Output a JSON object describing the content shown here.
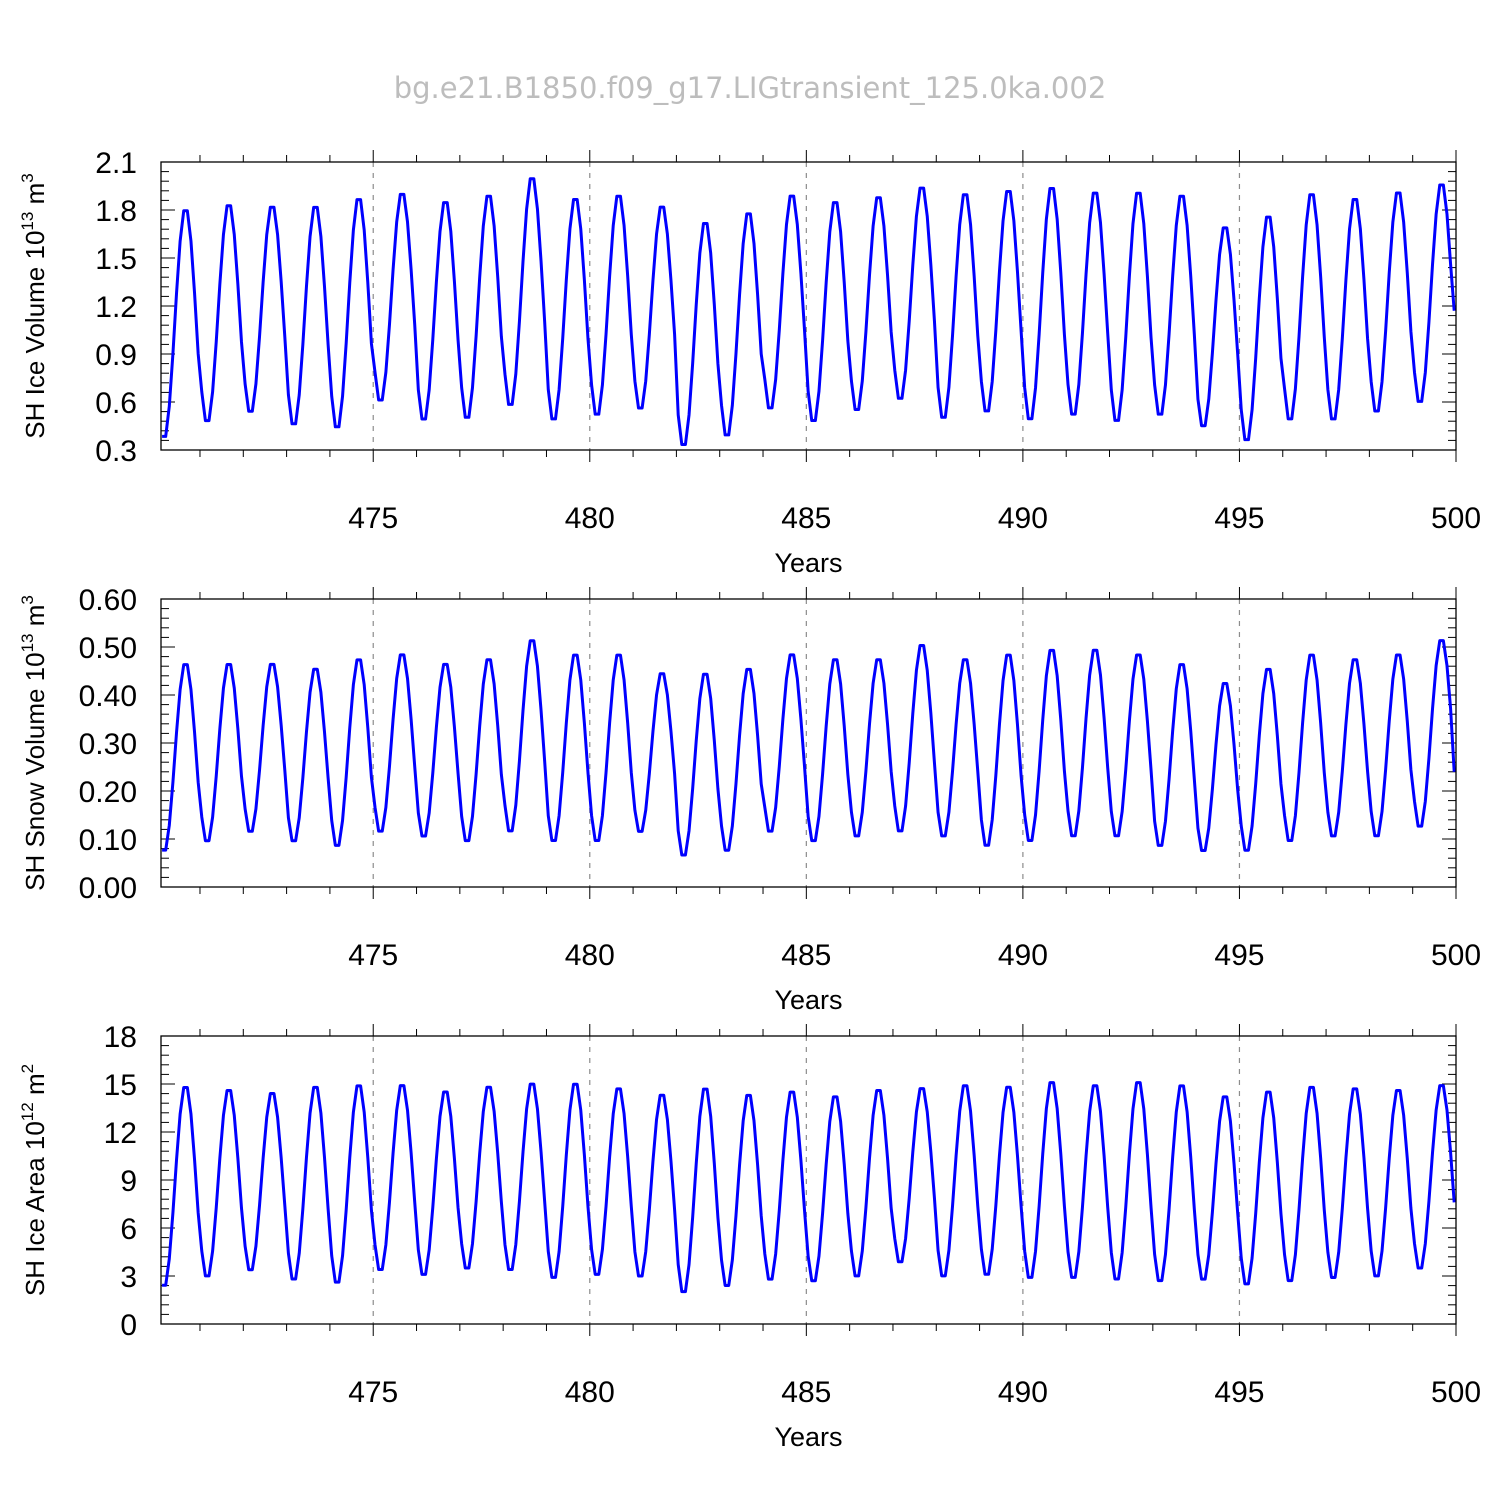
{
  "figure": {
    "title": "bg.e21.B1850.f09_g17.LIGtransient_125.0ka.002"
  },
  "chart_data": [
    {
      "type": "line",
      "ylabel": "SH Ice Volume 10",
      "ylabel_exp": "13",
      "ylabel_unit": " m",
      "ylabel_unit_exp": "3",
      "xlabel": "Years",
      "xlim": [
        470.1,
        500
      ],
      "ylim": [
        0.3,
        2.1
      ],
      "xticks": [
        475,
        480,
        485,
        490,
        495,
        500
      ],
      "xtick_labels": [
        "475",
        "480",
        "485",
        "490",
        "495",
        "500"
      ],
      "yticks": [
        0.3,
        0.6,
        0.9,
        1.2,
        1.5,
        1.8,
        2.1
      ],
      "ytick_labels": [
        "0.3",
        "0.6",
        "0.9",
        "1.2",
        "1.5",
        "1.8",
        "2.1"
      ],
      "grid": "vertical dashed at major x ticks",
      "color": "#0000ff",
      "start_year": 470,
      "annual_max": [
        1.82,
        1.85,
        1.84,
        1.84,
        1.89,
        1.92,
        1.87,
        1.91,
        2.02,
        1.89,
        1.91,
        1.84,
        1.74,
        1.8,
        1.91,
        1.87,
        1.9,
        1.96,
        1.92,
        1.94,
        1.96,
        1.93,
        1.93,
        1.91,
        1.71,
        1.78,
        1.92,
        1.89,
        1.93,
        1.98
      ],
      "annual_min": [
        0.36,
        0.46,
        0.52,
        0.44,
        0.42,
        0.59,
        0.47,
        0.48,
        0.56,
        0.47,
        0.5,
        0.54,
        0.31,
        0.37,
        0.54,
        0.46,
        0.53,
        0.6,
        0.48,
        0.52,
        0.47,
        0.5,
        0.46,
        0.5,
        0.43,
        0.34,
        0.47,
        0.47,
        0.52,
        0.58
      ],
      "final_value": 1.17
    },
    {
      "type": "line",
      "ylabel": "SH Snow Volume 10",
      "ylabel_exp": "13",
      "ylabel_unit": " m",
      "ylabel_unit_exp": "3",
      "xlabel": "Years",
      "xlim": [
        470.1,
        500
      ],
      "ylim": [
        0.0,
        0.6
      ],
      "xticks": [
        475,
        480,
        485,
        490,
        495,
        500
      ],
      "xtick_labels": [
        "475",
        "480",
        "485",
        "490",
        "495",
        "500"
      ],
      "yticks": [
        0.0,
        0.1,
        0.2,
        0.3,
        0.4,
        0.5,
        0.6
      ],
      "ytick_labels": [
        "0.00",
        "0.10",
        "0.20",
        "0.30",
        "0.40",
        "0.50",
        "0.60"
      ],
      "grid": "vertical dashed at major x ticks",
      "color": "#0000ff",
      "start_year": 470,
      "annual_max": [
        0.47,
        0.47,
        0.47,
        0.46,
        0.48,
        0.49,
        0.47,
        0.48,
        0.52,
        0.49,
        0.49,
        0.45,
        0.45,
        0.46,
        0.49,
        0.48,
        0.48,
        0.51,
        0.48,
        0.49,
        0.5,
        0.5,
        0.49,
        0.47,
        0.43,
        0.46,
        0.49,
        0.48,
        0.49,
        0.52
      ],
      "annual_min": [
        0.07,
        0.09,
        0.11,
        0.09,
        0.08,
        0.11,
        0.1,
        0.09,
        0.11,
        0.09,
        0.09,
        0.11,
        0.06,
        0.07,
        0.11,
        0.09,
        0.1,
        0.11,
        0.1,
        0.08,
        0.09,
        0.1,
        0.1,
        0.08,
        0.07,
        0.07,
        0.09,
        0.1,
        0.1,
        0.12
      ],
      "final_value": 0.24
    },
    {
      "type": "line",
      "ylabel": "SH Ice Area 10",
      "ylabel_exp": "12",
      "ylabel_unit": " m",
      "ylabel_unit_exp": "2",
      "xlabel": "Years",
      "xlim": [
        470.1,
        500
      ],
      "ylim": [
        0,
        18
      ],
      "xticks": [
        475,
        480,
        485,
        490,
        495,
        500
      ],
      "xtick_labels": [
        "475",
        "480",
        "485",
        "490",
        "495",
        "500"
      ],
      "yticks": [
        0,
        3,
        6,
        9,
        12,
        15,
        18
      ],
      "ytick_labels": [
        "0",
        "3",
        "6",
        "9",
        "12",
        "15",
        "18"
      ],
      "grid": "vertical dashed at major x ticks",
      "color": "#0000ff",
      "start_year": 470,
      "annual_max": [
        15.0,
        14.8,
        14.6,
        15.0,
        15.1,
        15.1,
        14.7,
        15.0,
        15.2,
        15.2,
        14.9,
        14.5,
        14.9,
        14.5,
        14.7,
        14.4,
        14.8,
        14.9,
        15.1,
        15.0,
        15.3,
        15.1,
        15.3,
        15.1,
        14.4,
        14.7,
        15.0,
        14.9,
        14.8,
        15.1
      ],
      "annual_min": [
        2.2,
        2.8,
        3.2,
        2.6,
        2.4,
        3.2,
        2.9,
        3.3,
        3.2,
        2.7,
        2.9,
        2.8,
        1.8,
        2.2,
        2.6,
        2.5,
        2.8,
        3.7,
        2.8,
        2.9,
        2.7,
        2.7,
        2.6,
        2.5,
        2.6,
        2.3,
        2.5,
        2.7,
        2.8,
        3.3
      ],
      "final_value": 7.6
    }
  ]
}
